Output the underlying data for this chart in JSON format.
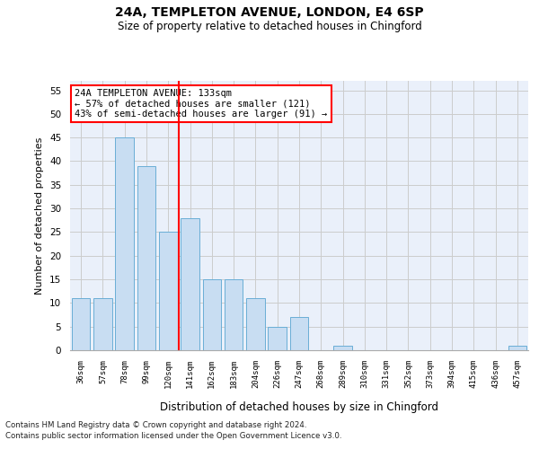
{
  "title1": "24A, TEMPLETON AVENUE, LONDON, E4 6SP",
  "title2": "Size of property relative to detached houses in Chingford",
  "xlabel": "Distribution of detached houses by size in Chingford",
  "ylabel": "Number of detached properties",
  "categories": [
    "36sqm",
    "57sqm",
    "78sqm",
    "99sqm",
    "120sqm",
    "141sqm",
    "162sqm",
    "183sqm",
    "204sqm",
    "226sqm",
    "247sqm",
    "268sqm",
    "289sqm",
    "310sqm",
    "331sqm",
    "352sqm",
    "373sqm",
    "394sqm",
    "415sqm",
    "436sqm",
    "457sqm"
  ],
  "values": [
    11,
    11,
    45,
    39,
    25,
    28,
    15,
    15,
    11,
    5,
    7,
    0,
    1,
    0,
    0,
    0,
    0,
    0,
    0,
    0,
    1
  ],
  "bar_color": "#c8ddf2",
  "bar_edge_color": "#6aaed6",
  "vline_x": 4.5,
  "vline_color": "red",
  "ylim": [
    0,
    57
  ],
  "yticks": [
    0,
    5,
    10,
    15,
    20,
    25,
    30,
    35,
    40,
    45,
    50,
    55
  ],
  "annotation_text": "24A TEMPLETON AVENUE: 133sqm\n← 57% of detached houses are smaller (121)\n43% of semi-detached houses are larger (91) →",
  "annotation_box_color": "white",
  "annotation_box_edge": "red",
  "footer1": "Contains HM Land Registry data © Crown copyright and database right 2024.",
  "footer2": "Contains public sector information licensed under the Open Government Licence v3.0.",
  "grid_color": "#cccccc",
  "bg_color": "#eaf0fa"
}
